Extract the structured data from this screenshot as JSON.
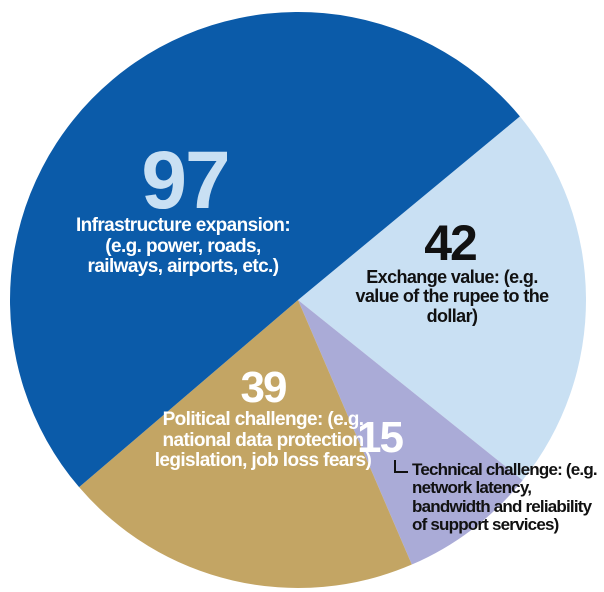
{
  "chart_data": {
    "type": "pie",
    "categories": [
      "Exchange value: (e.g. value of the rupee to the dollar)",
      "Technical challenge: (e.g. network latency, bandwidth and reliability of support services)",
      "Political challenge: (e.g. national data protection legislation, job loss fears)",
      "Infrastructure expansion: (e.g. power, roads, railways, airports, etc.)"
    ],
    "values": [
      42,
      15,
      39,
      97
    ],
    "colors": [
      "#c9e0f3",
      "#aaabd7",
      "#c3a564",
      "#0b5ba9"
    ]
  }
}
